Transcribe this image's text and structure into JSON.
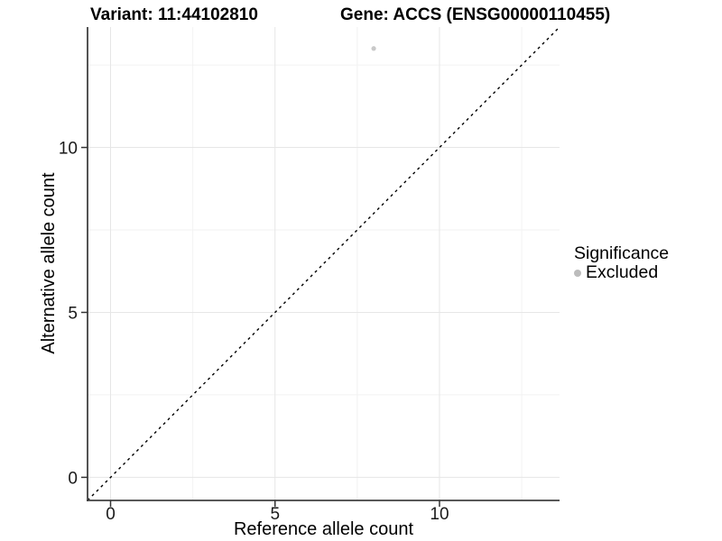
{
  "chart_data": {
    "type": "scatter",
    "title_variant": "Variant: 11:44102810",
    "title_gene": "Gene: ACCS (ENSG00000110455)",
    "xlabel": "Reference allele count",
    "ylabel": "Alternative allele count",
    "xlim": [
      -0.7,
      13.65
    ],
    "ylim": [
      -0.7,
      13.65
    ],
    "x_ticks": [
      0,
      5,
      10
    ],
    "y_ticks": [
      0,
      5,
      10
    ],
    "x_minor_ticks": [
      2.5,
      7.5,
      12.5
    ],
    "y_minor_ticks": [
      2.5,
      7.5,
      12.5
    ],
    "grid": "major+minor",
    "identity_line": {
      "equation": "y = x",
      "style": "dashed",
      "color": "#000000"
    },
    "series": [
      {
        "name": "Excluded",
        "color": "#c9c9c9",
        "points": [
          {
            "x": 8,
            "y": 13
          }
        ]
      }
    ],
    "legend": {
      "title": "Significance",
      "position": "right",
      "items": [
        {
          "label": "Excluded",
          "color": "#bcbcbc"
        }
      ]
    }
  },
  "colors": {
    "background": "#ffffff",
    "grid_major": "#e6e6e6",
    "grid_minor": "#f2f2f2",
    "axis_line": "#404040",
    "tick_mark": "#333333",
    "tick_text": "#1a1a1a"
  }
}
